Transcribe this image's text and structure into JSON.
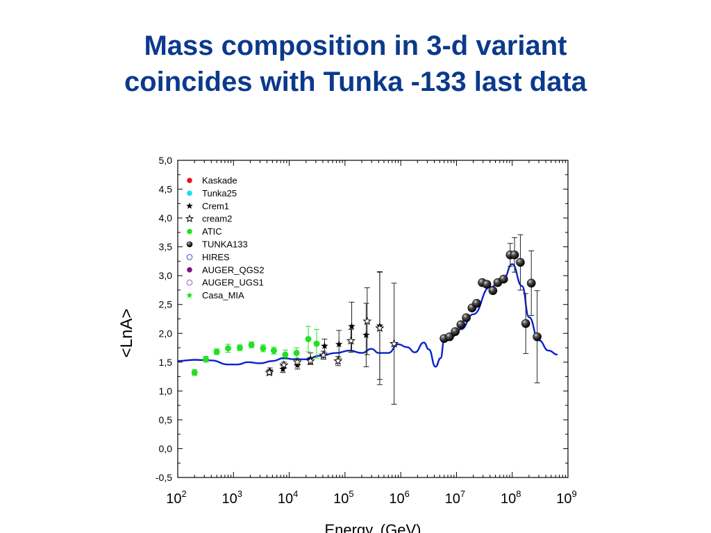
{
  "slide": {
    "title_line1": "Mass composition in 3-d variant",
    "title_line2": "coincides with Tunka -133 last data"
  },
  "chart_data": {
    "type": "scatter",
    "title": "",
    "xlabel": "Energy, (GeV)",
    "ylabel": "<LnA>",
    "x_scale": "log",
    "xlim": [
      100,
      1000000000
    ],
    "ylim": [
      -0.5,
      5.0
    ],
    "x_ticks": [
      {
        "base": "10",
        "exp": "2",
        "value": 100
      },
      {
        "base": "10",
        "exp": "3",
        "value": 1000
      },
      {
        "base": "10",
        "exp": "4",
        "value": 10000
      },
      {
        "base": "10",
        "exp": "5",
        "value": 100000
      },
      {
        "base": "10",
        "exp": "6",
        "value": 1000000
      },
      {
        "base": "10",
        "exp": "7",
        "value": 10000000
      },
      {
        "base": "10",
        "exp": "8",
        "value": 100000000
      },
      {
        "base": "10",
        "exp": "9",
        "value": 1000000000
      }
    ],
    "y_ticks": [
      {
        "label": "5,0",
        "value": 5.0
      },
      {
        "label": "4,5",
        "value": 4.5
      },
      {
        "label": "4,0",
        "value": 4.0
      },
      {
        "label": "3,5",
        "value": 3.5
      },
      {
        "label": "3,0",
        "value": 3.0
      },
      {
        "label": "2,5",
        "value": 2.5
      },
      {
        "label": "2,0",
        "value": 2.0
      },
      {
        "label": "1,5",
        "value": 1.5
      },
      {
        "label": "1,0",
        "value": 1.0
      },
      {
        "label": "0,5",
        "value": 0.5
      },
      {
        "label": "0,0",
        "value": 0.0
      },
      {
        "label": "-0,5",
        "value": -0.5
      }
    ],
    "grid": false,
    "legend_position": "top-left",
    "legend": [
      {
        "name": "Kaskade",
        "marker": "dot",
        "color": "#e8141b"
      },
      {
        "name": "Tunka25",
        "marker": "dot",
        "color": "#22d8ee"
      },
      {
        "name": "Crem1",
        "marker": "star",
        "color": "#000000"
      },
      {
        "name": "cream2",
        "marker": "star-open",
        "color": "#000000"
      },
      {
        "name": "ATIC",
        "marker": "dot",
        "color": "#22e022"
      },
      {
        "name": "TUNKA133",
        "marker": "ball",
        "color": "#000000"
      },
      {
        "name": "HIRES",
        "marker": "circle-open",
        "color": "#3a4fd8"
      },
      {
        "name": "AUGER_QGS2",
        "marker": "dot",
        "color": "#7a1488"
      },
      {
        "name": "AUGER_UGS1",
        "marker": "circle-open",
        "color": "#b04fc8"
      },
      {
        "name": "Casa_MIA",
        "marker": "star",
        "color": "#22e022"
      }
    ],
    "series": [
      {
        "name": "ATIC",
        "marker": "dot",
        "color": "#22e022",
        "points": [
          {
            "x": 200,
            "y": 1.32,
            "err": 0.05
          },
          {
            "x": 320,
            "y": 1.55,
            "err": 0.05
          },
          {
            "x": 500,
            "y": 1.68,
            "err": 0.05
          },
          {
            "x": 800,
            "y": 1.74,
            "err": 0.07
          },
          {
            "x": 1300,
            "y": 1.75,
            "err": 0.05
          },
          {
            "x": 2100,
            "y": 1.8,
            "err": 0.05
          },
          {
            "x": 3400,
            "y": 1.74,
            "err": 0.06
          },
          {
            "x": 5300,
            "y": 1.7,
            "err": 0.06
          },
          {
            "x": 8500,
            "y": 1.63,
            "err": 0.08
          },
          {
            "x": 13500,
            "y": 1.66,
            "err": 0.09
          },
          {
            "x": 22000,
            "y": 1.9,
            "err": 0.22
          },
          {
            "x": 31000,
            "y": 1.82,
            "err": 0.25
          }
        ]
      },
      {
        "name": "Crem1",
        "marker": "star",
        "color": "#000000",
        "points": [
          {
            "x": 4500,
            "y": 1.35,
            "err": 0.05
          },
          {
            "x": 7700,
            "y": 1.38,
            "err": 0.06
          },
          {
            "x": 14000,
            "y": 1.45,
            "err": 0.07
          },
          {
            "x": 24000,
            "y": 1.56,
            "err": 0.1
          },
          {
            "x": 43000,
            "y": 1.78,
            "err": 0.12
          },
          {
            "x": 78000,
            "y": 1.81,
            "err": 0.24
          },
          {
            "x": 132000,
            "y": 2.12,
            "err": 0.42
          },
          {
            "x": 240000,
            "y": 1.97,
            "err": 0.55
          },
          {
            "x": 420000,
            "y": 2.13,
            "err": 0.93
          }
        ]
      },
      {
        "name": "cream2",
        "marker": "star-open",
        "color": "#000000",
        "points": [
          {
            "x": 4400,
            "y": 1.32,
            "err": 0.04
          },
          {
            "x": 8000,
            "y": 1.45,
            "err": 0.05
          },
          {
            "x": 14000,
            "y": 1.5,
            "err": 0.05
          },
          {
            "x": 24000,
            "y": 1.52,
            "err": 0.06
          },
          {
            "x": 41000,
            "y": 1.62,
            "err": 0.07
          },
          {
            "x": 75000,
            "y": 1.52,
            "err": 0.08
          },
          {
            "x": 128000,
            "y": 1.87,
            "err": 0.2
          },
          {
            "x": 250000,
            "y": 2.21,
            "err": 0.58
          },
          {
            "x": 420000,
            "y": 2.09,
            "err": 0.98
          },
          {
            "x": 760000,
            "y": 1.82,
            "err": 1.05
          }
        ]
      },
      {
        "name": "TUNKA133",
        "marker": "ball",
        "color": "#000000",
        "points": [
          {
            "x": 6000000,
            "y": 1.91,
            "err": 0.0
          },
          {
            "x": 7500000,
            "y": 1.94,
            "err": 0.0
          },
          {
            "x": 9500000,
            "y": 2.03,
            "err": 0.0
          },
          {
            "x": 12000000,
            "y": 2.15,
            "err": 0.0
          },
          {
            "x": 15000000,
            "y": 2.27,
            "err": 0.0
          },
          {
            "x": 19000000,
            "y": 2.44,
            "err": 0.0
          },
          {
            "x": 23000000,
            "y": 2.52,
            "err": 0.0
          },
          {
            "x": 29000000,
            "y": 2.88,
            "err": 0.0
          },
          {
            "x": 35000000,
            "y": 2.85,
            "err": 0.0
          },
          {
            "x": 45000000,
            "y": 2.74,
            "err": 0.05
          },
          {
            "x": 55000000,
            "y": 2.88,
            "err": 0.0
          },
          {
            "x": 70000000,
            "y": 2.94,
            "err": 0.0
          },
          {
            "x": 92000000,
            "y": 3.36,
            "err": 0.2
          },
          {
            "x": 110000000,
            "y": 3.36,
            "err": 0.3
          },
          {
            "x": 140000000,
            "y": 3.23,
            "err": 0.48
          },
          {
            "x": 175000000,
            "y": 2.17,
            "err": 0.52
          },
          {
            "x": 220000000,
            "y": 2.87,
            "err": 0.56
          },
          {
            "x": 280000000,
            "y": 1.94,
            "err": 0.8
          }
        ]
      }
    ],
    "model_curve": {
      "name": "",
      "color": "#0a1fcf",
      "points": [
        [
          100,
          1.52
        ],
        [
          200,
          1.54
        ],
        [
          400,
          1.53
        ],
        [
          800,
          1.46
        ],
        [
          1200,
          1.46
        ],
        [
          1800,
          1.5
        ],
        [
          3000,
          1.48
        ],
        [
          5000,
          1.52
        ],
        [
          8000,
          1.57
        ],
        [
          12000,
          1.55
        ],
        [
          20000,
          1.55
        ],
        [
          35000,
          1.61
        ],
        [
          70000,
          1.66
        ],
        [
          120000,
          1.7
        ],
        [
          200000,
          1.66
        ],
        [
          300000,
          1.73
        ],
        [
          400000,
          1.66
        ],
        [
          600000,
          1.66
        ],
        [
          900000,
          1.81
        ],
        [
          1300000,
          1.76
        ],
        [
          1800000,
          1.67
        ],
        [
          2600000,
          1.84
        ],
        [
          3200000,
          1.72
        ],
        [
          4200000,
          1.42
        ],
        [
          5200000,
          1.57
        ],
        [
          6000000,
          1.87
        ],
        [
          8000000,
          1.93
        ],
        [
          12000000,
          2.07
        ],
        [
          20000000,
          2.33
        ],
        [
          40000000,
          2.8
        ],
        [
          70000000,
          2.95
        ],
        [
          100000000,
          3.2
        ],
        [
          150000000,
          2.82
        ],
        [
          200000000,
          2.28
        ],
        [
          300000000,
          1.88
        ],
        [
          450000000,
          1.7
        ],
        [
          650000000,
          1.63
        ]
      ]
    }
  }
}
